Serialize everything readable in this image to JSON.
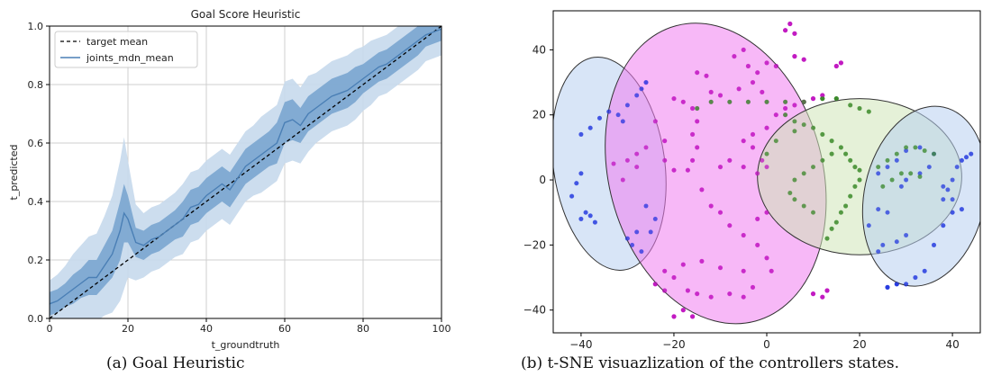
{
  "captions": {
    "a": "(a)  Goal Heuristic",
    "b": "(b)  t-SNE visuazlization of the controllers states."
  },
  "chart_data": [
    {
      "type": "line",
      "title": "Goal Score Heuristic",
      "xlabel": "t_groundtruth",
      "ylabel": "t_predicted",
      "xlim": [
        0,
        100
      ],
      "ylim": [
        0,
        1.0
      ],
      "xticks": [
        0,
        20,
        40,
        60,
        80,
        100
      ],
      "yticks": [
        0.0,
        0.2,
        0.4,
        0.6,
        0.8,
        1.0
      ],
      "xtick_labels": [
        "0",
        "20",
        "40",
        "60",
        "80",
        "100"
      ],
      "ytick_labels": [
        "0.0",
        "0.2",
        "0.4",
        "0.6",
        "0.8",
        "1.0"
      ],
      "grid": true,
      "legend": "top-left",
      "colors": {
        "target": "#000000",
        "mean": "#4a7fb5",
        "band_inner": "#7aa5cf",
        "band_outer": "#c6d9ec"
      },
      "series": [
        {
          "name": "target mean",
          "style": "dashed",
          "x": [
            0,
            100
          ],
          "y": [
            0.0,
            1.0
          ]
        },
        {
          "name": "joints_mdn_mean",
          "style": "solid",
          "x": [
            0,
            2,
            4,
            6,
            8,
            10,
            12,
            14,
            16,
            18,
            19,
            20,
            22,
            24,
            26,
            28,
            30,
            32,
            34,
            36,
            38,
            40,
            42,
            44,
            46,
            48,
            50,
            52,
            54,
            56,
            58,
            60,
            62,
            64,
            66,
            68,
            70,
            72,
            74,
            76,
            78,
            80,
            82,
            84,
            86,
            88,
            90,
            92,
            94,
            96,
            98,
            100
          ],
          "y": [
            0.05,
            0.06,
            0.08,
            0.1,
            0.12,
            0.14,
            0.14,
            0.18,
            0.22,
            0.3,
            0.36,
            0.34,
            0.26,
            0.25,
            0.27,
            0.28,
            0.3,
            0.32,
            0.34,
            0.38,
            0.39,
            0.42,
            0.44,
            0.46,
            0.44,
            0.48,
            0.52,
            0.54,
            0.56,
            0.58,
            0.6,
            0.67,
            0.68,
            0.66,
            0.7,
            0.72,
            0.74,
            0.76,
            0.77,
            0.78,
            0.8,
            0.82,
            0.84,
            0.86,
            0.87,
            0.89,
            0.91,
            0.93,
            0.95,
            0.97,
            0.98,
            0.99
          ],
          "band_inner": [
            0.04,
            0.04,
            0.04,
            0.05,
            0.05,
            0.06,
            0.06,
            0.07,
            0.08,
            0.1,
            0.1,
            0.08,
            0.05,
            0.05,
            0.05,
            0.05,
            0.05,
            0.05,
            0.06,
            0.06,
            0.06,
            0.06,
            0.06,
            0.06,
            0.06,
            0.06,
            0.06,
            0.06,
            0.06,
            0.06,
            0.07,
            0.07,
            0.07,
            0.06,
            0.06,
            0.06,
            0.06,
            0.06,
            0.06,
            0.06,
            0.06,
            0.05,
            0.05,
            0.05,
            0.05,
            0.05,
            0.05,
            0.05,
            0.05,
            0.04,
            0.04,
            0.04
          ],
          "band_outer": [
            0.08,
            0.09,
            0.1,
            0.12,
            0.13,
            0.14,
            0.15,
            0.17,
            0.2,
            0.24,
            0.26,
            0.2,
            0.13,
            0.11,
            0.11,
            0.11,
            0.11,
            0.11,
            0.12,
            0.12,
            0.12,
            0.12,
            0.12,
            0.12,
            0.12,
            0.12,
            0.12,
            0.12,
            0.13,
            0.13,
            0.13,
            0.14,
            0.14,
            0.13,
            0.13,
            0.12,
            0.12,
            0.12,
            0.12,
            0.12,
            0.12,
            0.11,
            0.11,
            0.1,
            0.1,
            0.1,
            0.1,
            0.1,
            0.1,
            0.09,
            0.09,
            0.09
          ]
        }
      ]
    },
    {
      "type": "scatter",
      "title": "",
      "xlabel": "",
      "ylabel": "",
      "xlim": [
        -46,
        46
      ],
      "ylim": [
        -47,
        52
      ],
      "xticks": [
        -40,
        -20,
        0,
        20,
        40
      ],
      "yticks": [
        -40,
        -20,
        0,
        20,
        40
      ],
      "xtick_labels": [
        "−40",
        "−20",
        "0",
        "20",
        "40"
      ],
      "ytick_labels": [
        "−40",
        "−20",
        "0",
        "20",
        "40"
      ],
      "grid": false,
      "colors": {
        "blue": "#2a3de0",
        "magenta": "#c21bc2",
        "green": "#3c8a2c",
        "ellipse_blue": "#b8cff0",
        "ellipse_magenta": "#f07df0",
        "ellipse_green": "#cfe6b8"
      },
      "ellipses": [
        {
          "cluster": "blue",
          "cx": -34,
          "cy": 5,
          "rx": 12,
          "ry": 33,
          "angle": -8
        },
        {
          "cluster": "magenta",
          "cx": -11,
          "cy": 2,
          "rx": 23,
          "ry": 47,
          "angle": -15
        },
        {
          "cluster": "green",
          "cx": 20,
          "cy": 1,
          "rx": 22,
          "ry": 24,
          "angle": 0
        },
        {
          "cluster": "blue",
          "cx": 34,
          "cy": -5,
          "rx": 13,
          "ry": 28,
          "angle": 12
        }
      ],
      "series": [
        {
          "cluster": "blue",
          "points": [
            [
              -42,
              -5
            ],
            [
              -41,
              -1
            ],
            [
              -40,
              2
            ],
            [
              -39,
              -10
            ],
            [
              -40,
              -12
            ],
            [
              -38,
              -11
            ],
            [
              -37,
              -13
            ],
            [
              -40,
              14
            ],
            [
              -38,
              16
            ],
            [
              -36,
              19
            ],
            [
              -34,
              21
            ],
            [
              -32,
              20
            ],
            [
              -31,
              18
            ],
            [
              -30,
              23
            ],
            [
              -28,
              26
            ],
            [
              -27,
              28
            ],
            [
              -26,
              30
            ],
            [
              -30,
              -18
            ],
            [
              -29,
              -20
            ],
            [
              -27,
              -22
            ],
            [
              -28,
              -16
            ],
            [
              -25,
              -16
            ],
            [
              -24,
              -12
            ],
            [
              -26,
              -8
            ],
            [
              26,
              -33
            ],
            [
              28,
              -32
            ],
            [
              30,
              -32
            ],
            [
              32,
              -30
            ],
            [
              34,
              -28
            ],
            [
              36,
              -20
            ],
            [
              38,
              -14
            ],
            [
              38,
              -6
            ],
            [
              39,
              -3
            ],
            [
              40,
              0
            ],
            [
              41,
              4
            ],
            [
              42,
              6
            ],
            [
              43,
              7
            ],
            [
              44,
              8
            ],
            [
              38,
              -2
            ],
            [
              40,
              -6
            ],
            [
              42,
              -9
            ],
            [
              40,
              -10
            ],
            [
              30,
              -17
            ],
            [
              28,
              -19
            ],
            [
              25,
              -20
            ],
            [
              24,
              -22
            ],
            [
              22,
              -14
            ],
            [
              24,
              -9
            ],
            [
              26,
              -10
            ],
            [
              29,
              -2
            ],
            [
              30,
              0
            ],
            [
              33,
              2
            ],
            [
              35,
              4
            ],
            [
              36,
              8
            ],
            [
              33,
              10
            ],
            [
              30,
              9
            ],
            [
              28,
              6
            ],
            [
              26,
              4
            ],
            [
              24,
              2
            ]
          ]
        },
        {
          "cluster": "magenta",
          "points": [
            [
              5,
              48
            ],
            [
              4,
              46
            ],
            [
              6,
              45
            ],
            [
              0,
              36
            ],
            [
              2,
              35
            ],
            [
              6,
              38
            ],
            [
              8,
              37
            ],
            [
              -7,
              38
            ],
            [
              -5,
              40
            ],
            [
              -4,
              35
            ],
            [
              -2,
              33
            ],
            [
              15,
              35
            ],
            [
              16,
              36
            ],
            [
              -15,
              33
            ],
            [
              -13,
              32
            ],
            [
              -12,
              27
            ],
            [
              -10,
              26
            ],
            [
              -6,
              28
            ],
            [
              -3,
              30
            ],
            [
              -1,
              27
            ],
            [
              -20,
              25
            ],
            [
              -18,
              24
            ],
            [
              -16,
              22
            ],
            [
              -15,
              18
            ],
            [
              -16,
              14
            ],
            [
              -15,
              10
            ],
            [
              -16,
              6
            ],
            [
              -17,
              3
            ],
            [
              -24,
              18
            ],
            [
              -22,
              12
            ],
            [
              -26,
              10
            ],
            [
              -28,
              8
            ],
            [
              -22,
              6
            ],
            [
              -20,
              3
            ],
            [
              -30,
              6
            ],
            [
              -28,
              4
            ],
            [
              -33,
              5
            ],
            [
              -31,
              0
            ],
            [
              -5,
              12
            ],
            [
              -3,
              14
            ],
            [
              -3,
              10
            ],
            [
              -5,
              4
            ],
            [
              -2,
              2
            ],
            [
              -8,
              6
            ],
            [
              -10,
              4
            ],
            [
              -14,
              -3
            ],
            [
              -12,
              -8
            ],
            [
              -10,
              -10
            ],
            [
              -8,
              -14
            ],
            [
              -5,
              -17
            ],
            [
              -2,
              -20
            ],
            [
              0,
              -24
            ],
            [
              1,
              -28
            ],
            [
              -5,
              -28
            ],
            [
              -10,
              -27
            ],
            [
              -14,
              -25
            ],
            [
              -18,
              -26
            ],
            [
              -22,
              -28
            ],
            [
              -20,
              -30
            ],
            [
              -17,
              -34
            ],
            [
              -15,
              -35
            ],
            [
              -12,
              -36
            ],
            [
              -8,
              -35
            ],
            [
              -5,
              -36
            ],
            [
              -3,
              -33
            ],
            [
              -16,
              -42
            ],
            [
              -18,
              -40
            ],
            [
              -20,
              -42
            ],
            [
              -2,
              -12
            ],
            [
              0,
              -10
            ],
            [
              -24,
              -32
            ],
            [
              -22,
              -34
            ],
            [
              10,
              -35
            ],
            [
              12,
              -36
            ],
            [
              13,
              -34
            ],
            [
              2,
              20
            ],
            [
              4,
              22
            ],
            [
              6,
              23
            ],
            [
              8,
              24
            ],
            [
              10,
              25
            ],
            [
              12,
              26
            ],
            [
              0,
              16
            ],
            [
              -1,
              6
            ],
            [
              0,
              4
            ]
          ]
        },
        {
          "cluster": "green",
          "points": [
            [
              -15,
              22
            ],
            [
              -12,
              24
            ],
            [
              -8,
              24
            ],
            [
              -4,
              24
            ],
            [
              0,
              24
            ],
            [
              4,
              24
            ],
            [
              8,
              24
            ],
            [
              12,
              25
            ],
            [
              15,
              25
            ],
            [
              18,
              23
            ],
            [
              20,
              22
            ],
            [
              22,
              21
            ],
            [
              4,
              20
            ],
            [
              6,
              18
            ],
            [
              8,
              17
            ],
            [
              10,
              16
            ],
            [
              12,
              14
            ],
            [
              14,
              12
            ],
            [
              16,
              10
            ],
            [
              17,
              8
            ],
            [
              18,
              6
            ],
            [
              19,
              4
            ],
            [
              20,
              3
            ],
            [
              20,
              0
            ],
            [
              19,
              -2
            ],
            [
              18,
              -5
            ],
            [
              17,
              -8
            ],
            [
              16,
              -10
            ],
            [
              15,
              -13
            ],
            [
              14,
              -15
            ],
            [
              13,
              -18
            ],
            [
              10,
              -10
            ],
            [
              8,
              -8
            ],
            [
              6,
              -6
            ],
            [
              5,
              -4
            ],
            [
              6,
              0
            ],
            [
              8,
              2
            ],
            [
              10,
              4
            ],
            [
              12,
              6
            ],
            [
              14,
              8
            ],
            [
              24,
              4
            ],
            [
              26,
              6
            ],
            [
              28,
              8
            ],
            [
              30,
              10
            ],
            [
              32,
              10
            ],
            [
              34,
              9
            ],
            [
              36,
              8
            ],
            [
              25,
              -2
            ],
            [
              27,
              0
            ],
            [
              29,
              2
            ],
            [
              31,
              2
            ],
            [
              33,
              1
            ],
            [
              6,
              15
            ],
            [
              2,
              12
            ],
            [
              0,
              8
            ]
          ]
        }
      ]
    }
  ]
}
